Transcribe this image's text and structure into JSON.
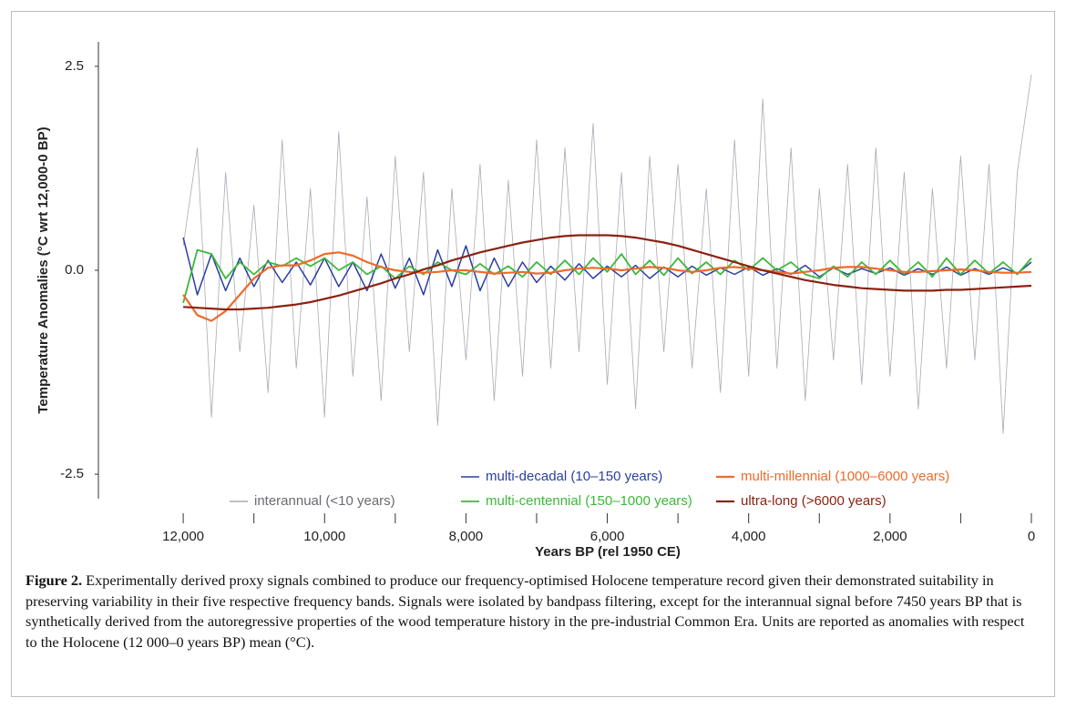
{
  "chart_data": {
    "type": "line",
    "ylabel": "Temperature Anomalies (°C wrt 12,000-0 BP)",
    "xlabel": "Years BP (rel 1950 CE)",
    "x": [
      12000,
      11800,
      11600,
      11400,
      11200,
      11000,
      10800,
      10600,
      10400,
      10200,
      10000,
      9800,
      9600,
      9400,
      9200,
      9000,
      8800,
      8600,
      8400,
      8200,
      8000,
      7800,
      7600,
      7400,
      7200,
      7000,
      6800,
      6600,
      6400,
      6200,
      6000,
      5800,
      5600,
      5400,
      5200,
      5000,
      4800,
      4600,
      4400,
      4200,
      4000,
      3800,
      3600,
      3400,
      3200,
      3000,
      2800,
      2600,
      2400,
      2200,
      2000,
      1800,
      1600,
      1400,
      1200,
      1000,
      800,
      600,
      400,
      200,
      0
    ],
    "series": [
      {
        "name": "interannual (<10 years)",
        "color": "#a9aab4",
        "width": 0.8,
        "values": [
          0.3,
          1.5,
          -1.8,
          1.2,
          -1.0,
          0.8,
          -1.5,
          1.6,
          -1.2,
          1.0,
          -1.8,
          1.7,
          -1.3,
          0.9,
          -1.6,
          1.4,
          -1.0,
          1.2,
          -1.9,
          1.0,
          -1.1,
          1.3,
          -1.6,
          1.1,
          -1.3,
          1.6,
          -1.2,
          1.5,
          -1.0,
          1.8,
          -1.4,
          1.2,
          -1.7,
          1.4,
          -1.0,
          1.3,
          -1.2,
          1.0,
          -1.5,
          1.6,
          -1.3,
          2.1,
          -1.2,
          1.5,
          -1.6,
          1.0,
          -1.1,
          1.3,
          -1.4,
          1.5,
          -1.3,
          1.2,
          -1.7,
          1.0,
          -1.2,
          1.4,
          -1.1,
          1.3,
          -2.0,
          1.2,
          2.4
        ]
      },
      {
        "name": "multi-decadal (10–150 years)",
        "color": "#2b3fa0",
        "width": 1.5,
        "values": [
          0.4,
          -0.3,
          0.2,
          -0.25,
          0.15,
          -0.2,
          0.12,
          -0.15,
          0.1,
          -0.18,
          0.15,
          -0.2,
          0.1,
          -0.25,
          0.2,
          -0.22,
          0.15,
          -0.3,
          0.25,
          -0.2,
          0.3,
          -0.25,
          0.15,
          -0.2,
          0.1,
          -0.15,
          0.05,
          -0.12,
          0.08,
          -0.1,
          0.05,
          -0.08,
          0.06,
          -0.1,
          0.04,
          -0.08,
          0.05,
          -0.06,
          0.03,
          -0.05,
          0.04,
          -0.06,
          0.02,
          -0.05,
          0.06,
          -0.08,
          0.03,
          -0.05,
          0.02,
          -0.04,
          0.03,
          -0.06,
          0.02,
          -0.05,
          0.04,
          -0.06,
          0.02,
          -0.05,
          0.03,
          -0.04,
          0.1
        ]
      },
      {
        "name": "multi-centennial (150–1000 years)",
        "color": "#3cb83a",
        "width": 1.8,
        "values": [
          -0.4,
          0.25,
          0.2,
          -0.1,
          0.1,
          -0.05,
          0.1,
          0.05,
          0.15,
          0.05,
          0.15,
          0.0,
          0.1,
          -0.05,
          0.05,
          -0.1,
          0.05,
          -0.05,
          0.1,
          0.0,
          -0.05,
          0.08,
          -0.05,
          0.05,
          -0.08,
          0.1,
          -0.05,
          0.12,
          -0.05,
          0.15,
          -0.02,
          0.2,
          -0.05,
          0.12,
          -0.06,
          0.15,
          -0.04,
          0.1,
          -0.05,
          0.12,
          0.0,
          0.15,
          0.0,
          0.1,
          -0.05,
          -0.1,
          0.05,
          -0.08,
          0.1,
          -0.05,
          0.12,
          -0.05,
          0.1,
          -0.08,
          0.15,
          -0.05,
          0.12,
          -0.04,
          0.1,
          -0.05,
          0.15
        ]
      },
      {
        "name": "multi-millennial (1000–6000 years)",
        "color": "#ee6a2a",
        "width": 2.2,
        "values": [
          -0.3,
          -0.55,
          -0.62,
          -0.5,
          -0.3,
          -0.1,
          0.03,
          0.06,
          0.06,
          0.12,
          0.2,
          0.22,
          0.18,
          0.1,
          0.04,
          0.0,
          -0.02,
          -0.03,
          -0.02,
          0.0,
          0.0,
          -0.02,
          -0.04,
          -0.03,
          -0.02,
          -0.04,
          -0.03,
          0.0,
          0.02,
          0.03,
          0.02,
          0.0,
          0.02,
          0.04,
          0.03,
          0.0,
          -0.02,
          0.0,
          0.03,
          0.04,
          0.02,
          0.0,
          -0.02,
          -0.04,
          -0.02,
          0.0,
          0.03,
          0.04,
          0.04,
          0.02,
          0.0,
          -0.02,
          -0.02,
          -0.01,
          0.0,
          0.01,
          0.0,
          -0.02,
          -0.03,
          -0.03,
          -0.02
        ]
      },
      {
        "name": "ultra-long (>6000 years)",
        "color": "#8b2212",
        "width": 2.2,
        "values": [
          -0.45,
          -0.46,
          -0.47,
          -0.48,
          -0.48,
          -0.47,
          -0.46,
          -0.44,
          -0.42,
          -0.39,
          -0.35,
          -0.31,
          -0.26,
          -0.21,
          -0.16,
          -0.1,
          -0.05,
          0.01,
          0.06,
          0.12,
          0.17,
          0.22,
          0.26,
          0.3,
          0.34,
          0.37,
          0.4,
          0.42,
          0.43,
          0.43,
          0.43,
          0.42,
          0.4,
          0.37,
          0.34,
          0.3,
          0.25,
          0.2,
          0.15,
          0.1,
          0.05,
          0.0,
          -0.04,
          -0.08,
          -0.12,
          -0.15,
          -0.18,
          -0.2,
          -0.22,
          -0.23,
          -0.24,
          -0.25,
          -0.25,
          -0.25,
          -0.24,
          -0.24,
          -0.23,
          -0.22,
          -0.21,
          -0.2,
          -0.19
        ]
      }
    ],
    "xlim": [
      13200,
      0
    ],
    "ylim": [
      -2.8,
      2.8
    ],
    "xticks": [
      {
        "value": 12000,
        "label": "12,000"
      },
      {
        "value": 10000,
        "label": "10,000"
      },
      {
        "value": 8000,
        "label": "8,000"
      },
      {
        "value": 6000,
        "label": "6,000"
      },
      {
        "value": 4000,
        "label": "4,000"
      },
      {
        "value": 2000,
        "label": "2,000"
      },
      0
    ],
    "xminor_ticks": [
      11000,
      9000,
      7000,
      5000,
      3000,
      1000
    ],
    "yticks": [
      -2.5,
      {
        "value": 0,
        "label": "0.0"
      },
      2.5
    ],
    "legend": "bottom"
  },
  "figure_caption": {
    "label": "Figure 2.",
    "text": " Experimentally derived proxy signals combined to produce our frequency-optimised Holocene temperature record given their demonstrated suitability in preserving variability in their five respective frequency bands. Signals were isolated by bandpass filtering, except for the interannual signal before 7450 years BP that is synthetically derived from the autoregressive properties of the wood temperature history in the pre-industrial Common Era. Units are reported as anomalies with respect to the Holocene (12 000–0 years BP) mean (°C)."
  }
}
